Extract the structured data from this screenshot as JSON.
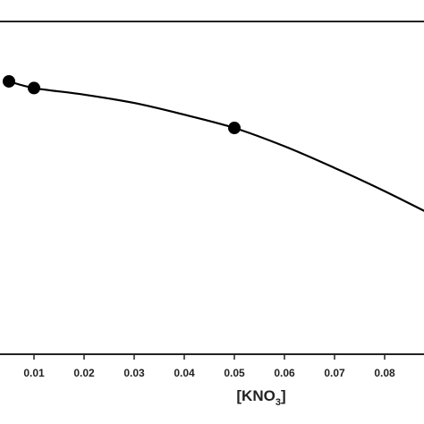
{
  "chart_data": {
    "type": "line",
    "x_ticks": [
      "0.01",
      "0.02",
      "0.03",
      "0.04",
      "0.05",
      "0.06",
      "0.07",
      "0.08"
    ],
    "xlabel": {
      "prefix": "[KNO",
      "subscript": "3",
      "suffix": "]"
    },
    "xlim": [
      0,
      0.088
    ],
    "ylim": [
      0,
      1
    ],
    "points": [
      {
        "x": 0.005,
        "y": 0.82
      },
      {
        "x": 0.01,
        "y": 0.8
      },
      {
        "x": 0.05,
        "y": 0.68
      }
    ],
    "curve": [
      {
        "x": 0.005,
        "y": 0.82
      },
      {
        "x": 0.01,
        "y": 0.8
      },
      {
        "x": 0.02,
        "y": 0.78
      },
      {
        "x": 0.03,
        "y": 0.755
      },
      {
        "x": 0.04,
        "y": 0.72
      },
      {
        "x": 0.05,
        "y": 0.68
      },
      {
        "x": 0.06,
        "y": 0.625
      },
      {
        "x": 0.07,
        "y": 0.56
      },
      {
        "x": 0.08,
        "y": 0.49
      },
      {
        "x": 0.088,
        "y": 0.43
      }
    ],
    "grid": false,
    "colors": {
      "line": "#000000",
      "marker": "#000000",
      "axis": "#222222"
    }
  }
}
